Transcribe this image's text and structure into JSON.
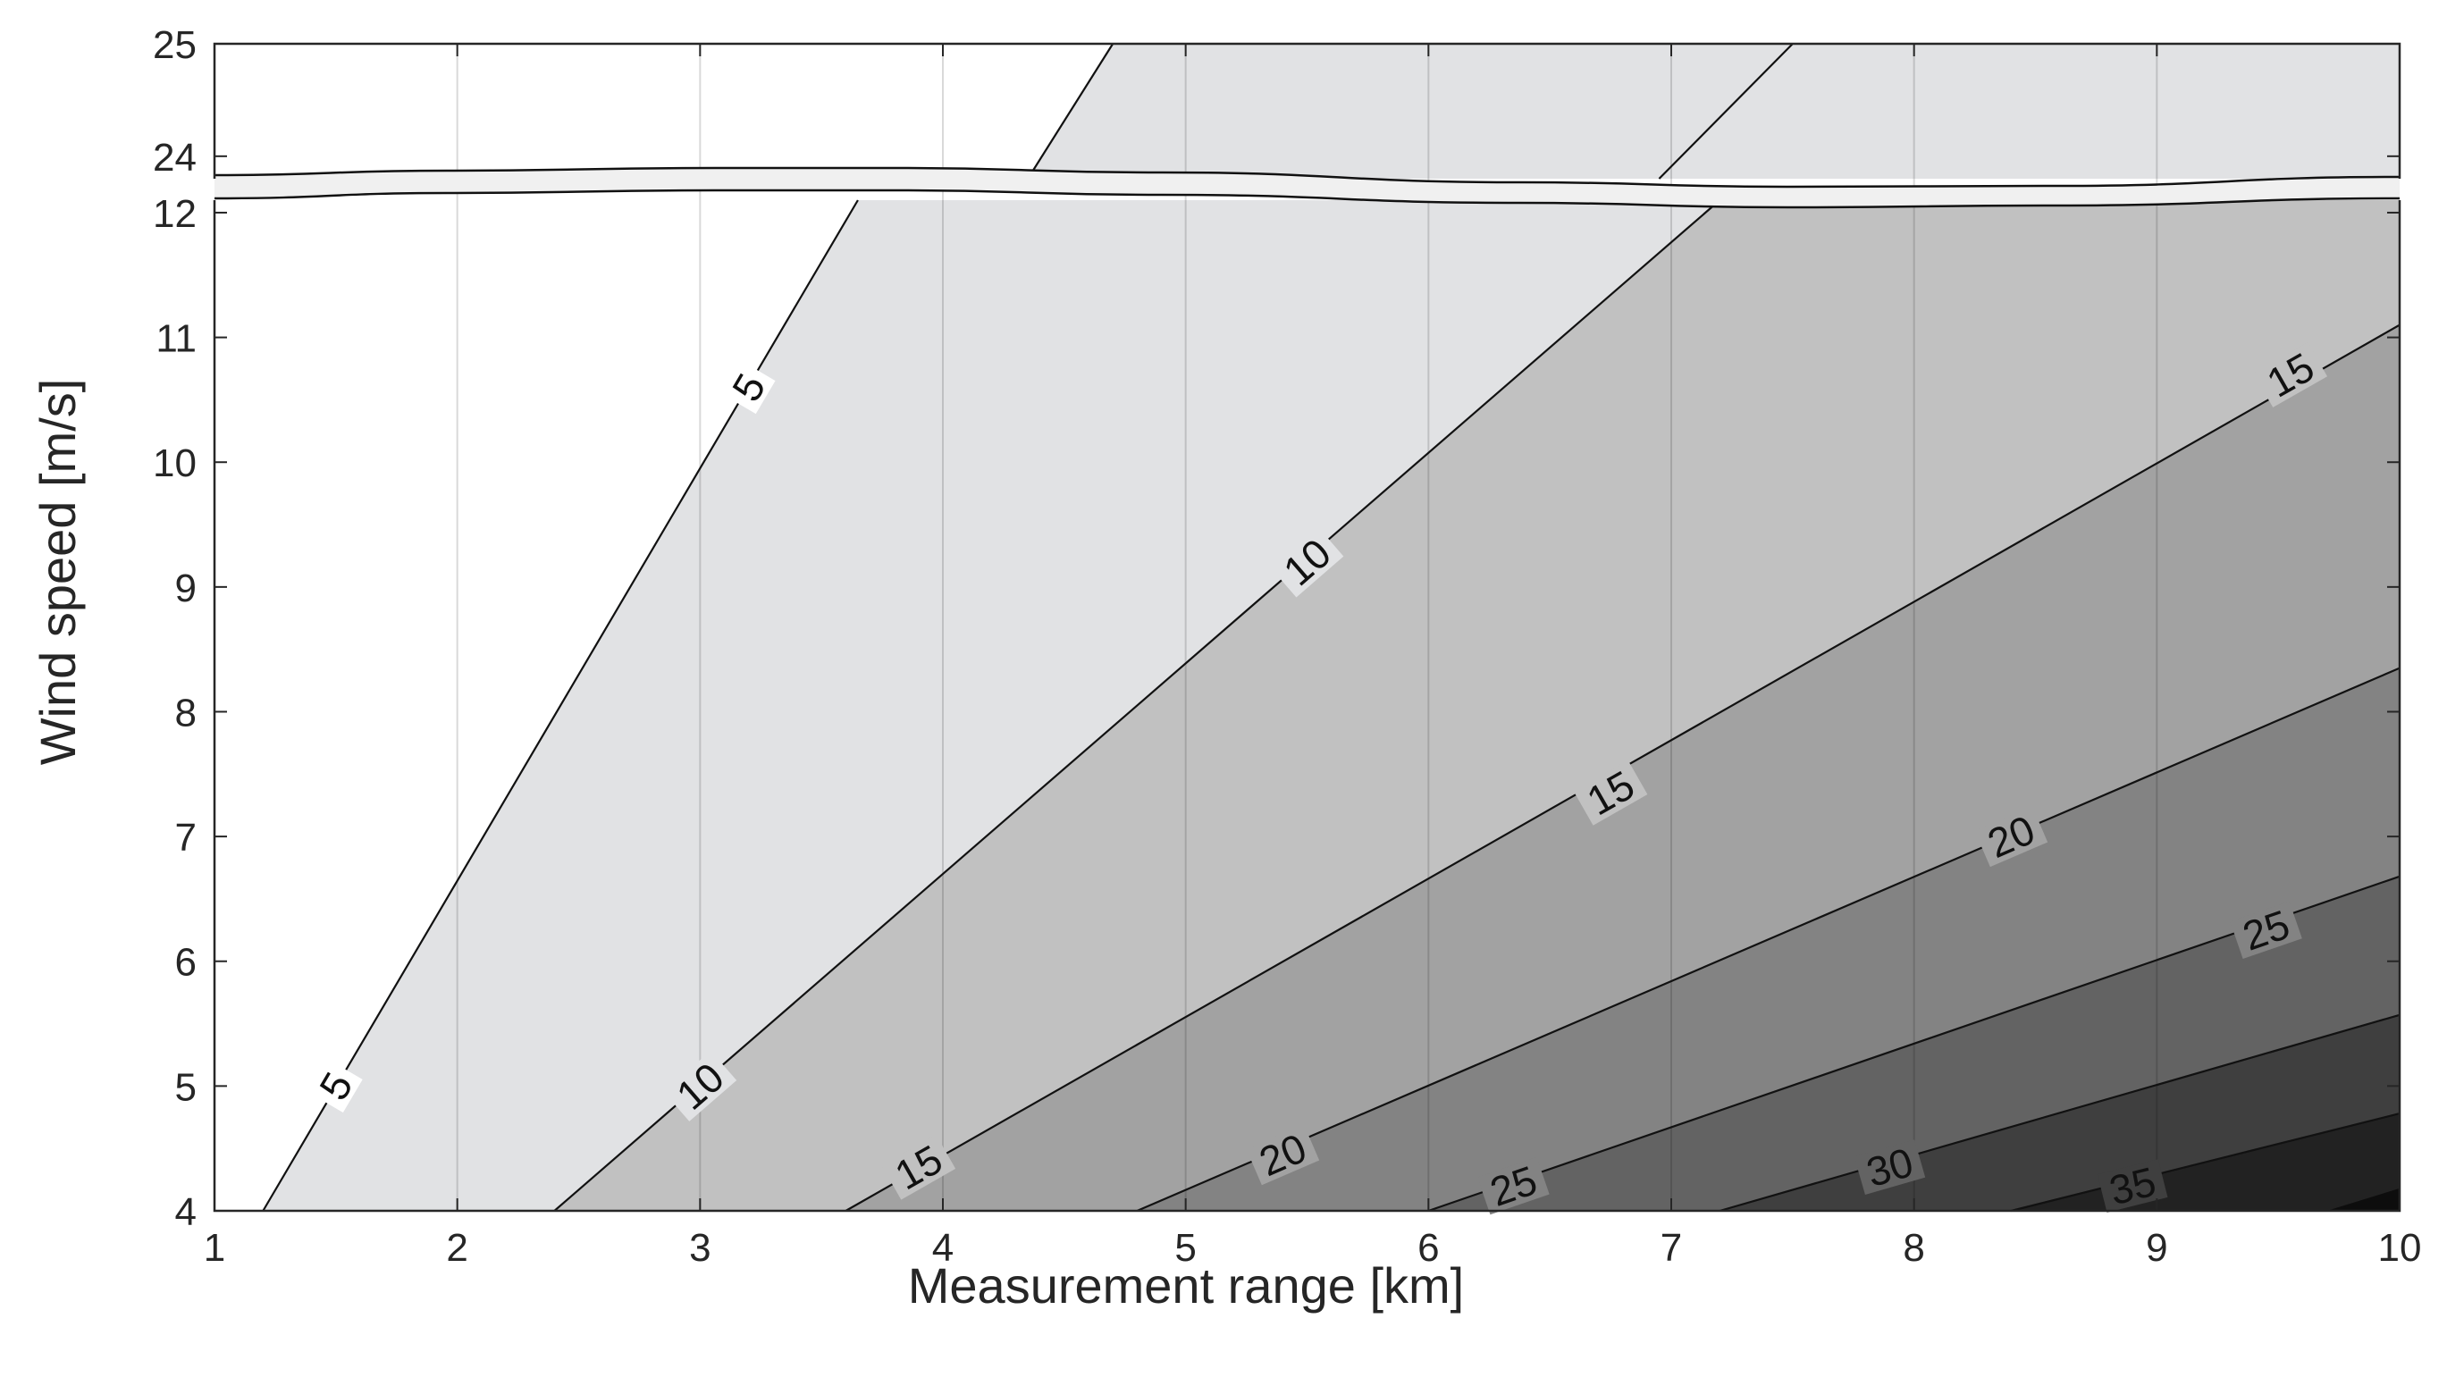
{
  "chart_data": {
    "type": "contour",
    "title": "",
    "xlabel": "Measurement range [km]",
    "ylabel": "Wind speed [m/s]",
    "xlim": [
      1,
      10
    ],
    "x_ticks": [
      "1",
      "2",
      "3",
      "4",
      "5",
      "6",
      "7",
      "8",
      "9",
      "10"
    ],
    "y_axis_broken": true,
    "y_segments": [
      {
        "ylim": [
          4,
          12.1
        ],
        "ticks": [
          "4",
          "5",
          "6",
          "7",
          "8",
          "9",
          "10",
          "11",
          "12"
        ]
      },
      {
        "ylim": [
          23.8,
          25
        ],
        "ticks": [
          "24",
          "25"
        ]
      }
    ],
    "grid": true,
    "contour_levels": [
      5,
      10,
      15,
      20,
      25,
      30,
      35
    ],
    "contour_lines": [
      {
        "level": 5,
        "points": [
          [
            1.2,
            4
          ],
          [
            3.65,
            12.1
          ],
          [
            4.35,
            23.8
          ],
          [
            4.7,
            25
          ]
        ],
        "labels": [
          [
            1.5,
            5.0
          ],
          [
            3.2,
            10.6
          ]
        ]
      },
      {
        "level": 10,
        "points": [
          [
            2.4,
            4
          ],
          [
            7.2,
            12.1
          ],
          [
            6.95,
            23.8
          ],
          [
            7.5,
            25
          ]
        ],
        "labels": [
          [
            3.0,
            5.0
          ],
          [
            5.5,
            9.2
          ]
        ]
      },
      {
        "level": 15,
        "points": [
          [
            3.6,
            4
          ],
          [
            10,
            11.1
          ]
        ],
        "labels": [
          [
            3.9,
            4.35
          ],
          [
            6.75,
            7.35
          ],
          [
            9.55,
            10.7
          ]
        ]
      },
      {
        "level": 20,
        "points": [
          [
            4.8,
            4
          ],
          [
            10,
            8.35
          ]
        ],
        "labels": [
          [
            5.4,
            4.45
          ],
          [
            8.4,
            7.0
          ]
        ]
      },
      {
        "level": 25,
        "points": [
          [
            6.0,
            4
          ],
          [
            10,
            6.68
          ]
        ],
        "labels": [
          [
            6.35,
            4.2
          ],
          [
            9.45,
            6.25
          ]
        ]
      },
      {
        "level": 30,
        "points": [
          [
            7.2,
            4
          ],
          [
            10,
            5.57
          ]
        ],
        "labels": [
          [
            7.9,
            4.35
          ]
        ]
      },
      {
        "level": 35,
        "points": [
          [
            8.4,
            4
          ],
          [
            10,
            4.78
          ]
        ],
        "labels": [
          [
            8.9,
            4.2
          ]
        ]
      }
    ],
    "colors": {
      "below_5": "#ffffff",
      "5_10": "#e1e2e4",
      "10_15": "#c1c1c1",
      "15_20": "#a2a2a2",
      "20_25": "#838383",
      "25_30": "#636363",
      "30_35": "#3f3f3f",
      "35_40": "#222222",
      "above_40": "#0d0d0d",
      "break_band": "#f0f0f0"
    }
  }
}
